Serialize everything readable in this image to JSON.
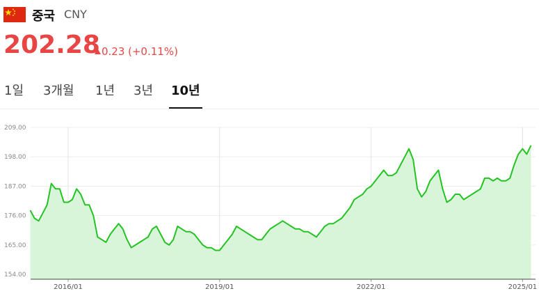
{
  "header": {
    "country": "중국",
    "currency": "CNY",
    "price": 202.28,
    "change": 0.23,
    "change_pct": "(+0.11%)"
  },
  "tabs": {
    "items": [
      "1일",
      "3개월",
      "1년",
      "3년",
      "10년"
    ],
    "selected": 4
  },
  "chart_data": {
    "type": "line",
    "color": "#22c322",
    "fill": "#d9f5d9",
    "grid": true,
    "x": [
      "2015/04",
      "2015/05",
      "2015/06",
      "2015/07",
      "2015/08",
      "2015/09",
      "2015/10",
      "2015/11",
      "2015/12",
      "2016/01",
      "2016/02",
      "2016/03",
      "2016/04",
      "2016/05",
      "2016/06",
      "2016/07",
      "2016/08",
      "2016/09",
      "2016/10",
      "2016/11",
      "2016/12",
      "2017/01",
      "2017/02",
      "2017/03",
      "2017/04",
      "2017/05",
      "2017/06",
      "2017/07",
      "2017/08",
      "2017/09",
      "2017/10",
      "2017/11",
      "2017/12",
      "2018/01",
      "2018/02",
      "2018/03",
      "2018/04",
      "2018/05",
      "2018/06",
      "2018/07",
      "2018/08",
      "2018/09",
      "2018/10",
      "2018/11",
      "2018/12",
      "2019/01",
      "2019/02",
      "2019/03",
      "2019/04",
      "2019/05",
      "2019/06",
      "2019/07",
      "2019/08",
      "2019/09",
      "2019/10",
      "2019/11",
      "2019/12",
      "2020/01",
      "2020/02",
      "2020/03",
      "2020/04",
      "2020/05",
      "2020/06",
      "2020/07",
      "2020/08",
      "2020/09",
      "2020/10",
      "2020/11",
      "2020/12",
      "2021/01",
      "2021/02",
      "2021/03",
      "2021/04",
      "2021/05",
      "2021/06",
      "2021/07",
      "2021/08",
      "2021/09",
      "2021/10",
      "2021/11",
      "2021/12",
      "2022/01",
      "2022/02",
      "2022/03",
      "2022/04",
      "2022/05",
      "2022/06",
      "2022/07",
      "2022/08",
      "2022/09",
      "2022/10",
      "2022/11",
      "2022/12",
      "2023/01",
      "2023/02",
      "2023/03",
      "2023/04",
      "2023/05",
      "2023/06",
      "2023/07",
      "2023/08",
      "2023/09",
      "2023/10",
      "2023/11",
      "2023/12",
      "2024/01",
      "2024/02",
      "2024/03",
      "2024/04",
      "2024/05",
      "2024/06",
      "2024/07",
      "2024/08",
      "2024/09",
      "2024/10",
      "2024/11",
      "2024/12",
      "2025/01",
      "2025/02",
      "2025/03"
    ],
    "values": [
      178,
      175,
      174,
      177,
      180,
      188,
      186,
      186,
      181,
      181,
      182,
      186,
      184,
      180,
      180,
      176,
      168,
      167,
      166,
      169,
      171,
      173,
      171,
      167,
      164,
      165,
      166,
      167,
      168,
      171,
      172,
      169,
      166,
      165,
      167,
      172,
      171,
      170,
      170,
      169,
      167,
      165,
      164,
      164,
      163,
      163,
      165,
      167,
      169,
      172,
      171,
      170,
      169,
      168,
      167,
      167,
      169,
      171,
      172,
      173,
      174,
      173,
      172,
      171,
      171,
      170,
      170,
      169,
      168,
      170,
      172,
      173,
      173,
      174,
      175,
      177,
      179,
      182,
      183,
      184,
      186,
      187,
      189,
      191,
      193,
      191,
      191,
      192,
      195,
      198,
      201,
      197,
      186,
      183,
      185,
      189,
      191,
      193,
      186,
      181,
      182,
      184,
      184,
      182,
      183,
      184,
      185,
      186,
      190,
      190,
      189,
      190,
      189,
      189,
      190,
      195,
      199,
      201,
      199,
      202.28
    ],
    "ylim": [
      152.2,
      209
    ],
    "yticks": [
      {
        "value": 154,
        "label": "154.00"
      },
      {
        "value": 165,
        "label": "165.00"
      },
      {
        "value": 176,
        "label": "176.00"
      },
      {
        "value": 187,
        "label": "187.00"
      },
      {
        "value": 198,
        "label": "198.00"
      },
      {
        "value": 209,
        "label": "209.00"
      }
    ],
    "xticks": [
      "2016/01",
      "2019/01",
      "2022/01",
      "2025/01"
    ]
  }
}
